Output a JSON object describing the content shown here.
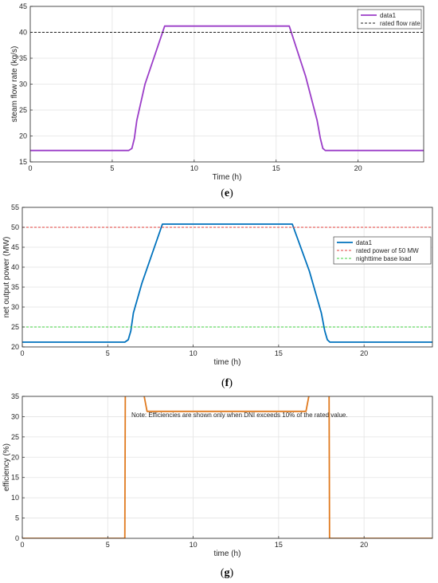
{
  "captions": [
    "(",
    "e",
    ")",
    "(",
    "f",
    ")",
    "(",
    "g",
    ")"
  ],
  "chart_data": [
    {
      "type": "line",
      "caption": "(e)",
      "xlabel": "Time (h)",
      "ylabel": "steam flow rate (kg/s)",
      "xlim": [
        0,
        24
      ],
      "ylim": [
        15,
        45
      ],
      "xticks": [
        0,
        5,
        10,
        15,
        20
      ],
      "yticks": [
        15,
        20,
        25,
        30,
        35,
        40,
        45
      ],
      "grid": true,
      "legend_position": "top-right",
      "series": [
        {
          "name": "data1",
          "color": "#9b3dc8",
          "style": "solid",
          "x": [
            0,
            6.0,
            6.2,
            6.35,
            6.5,
            7.0,
            8.2,
            15.8,
            16.8,
            17.5,
            17.7,
            17.85,
            18.0,
            24
          ],
          "y": [
            17.2,
            17.2,
            17.6,
            19.5,
            23,
            30,
            41.2,
            41.2,
            31.5,
            23,
            19.5,
            17.6,
            17.2,
            17.2
          ]
        },
        {
          "name": "rated flow rate",
          "color": "#222222",
          "style": "dashed",
          "x": [
            0,
            24
          ],
          "y": [
            40,
            40
          ]
        }
      ]
    },
    {
      "type": "line",
      "caption": "(f)",
      "xlabel": "time (h)",
      "ylabel": "net output power (MW)",
      "xlim": [
        0,
        24
      ],
      "ylim": [
        20,
        55
      ],
      "xticks": [
        0,
        5,
        10,
        15,
        20
      ],
      "yticks": [
        20,
        25,
        30,
        35,
        40,
        45,
        50,
        55
      ],
      "grid": true,
      "legend_position": "right",
      "series": [
        {
          "name": "data1",
          "color": "#0072bd",
          "style": "solid",
          "x": [
            0,
            6.0,
            6.2,
            6.35,
            6.5,
            7.0,
            8.2,
            15.8,
            16.8,
            17.5,
            17.7,
            17.85,
            18.0,
            24
          ],
          "y": [
            21.2,
            21.2,
            21.8,
            24,
            28.5,
            36,
            50.8,
            50.8,
            39,
            28.5,
            24,
            21.8,
            21.2,
            21.2
          ]
        },
        {
          "name": "rated power of 50 MW",
          "color": "#e0423c",
          "style": "dashed",
          "x": [
            0,
            24
          ],
          "y": [
            50,
            50
          ]
        },
        {
          "name": "nighttime base load",
          "color": "#3fd13f",
          "style": "dashed",
          "x": [
            0,
            24
          ],
          "y": [
            25,
            25
          ]
        }
      ]
    },
    {
      "type": "line",
      "caption": "(g)",
      "xlabel": "time (h)",
      "ylabel": "efficiency (%)",
      "xlim": [
        0,
        24
      ],
      "ylim": [
        0,
        35
      ],
      "xticks": [
        0,
        5,
        10,
        15,
        20
      ],
      "yticks": [
        0,
        5,
        10,
        15,
        20,
        25,
        30,
        35
      ],
      "grid": true,
      "annotation": "Note: Efficiencies are shown only when DNI exceeds 10% of the rated value.",
      "series": [
        {
          "name": "",
          "color": "#e07a1f",
          "style": "solid",
          "x": [
            0,
            6.0,
            6.03,
            7.0,
            7.3,
            16.6,
            16.9,
            17.95,
            17.98,
            24
          ],
          "y": [
            0,
            0,
            38,
            38,
            31.3,
            31.3,
            38,
            38,
            0,
            0
          ]
        }
      ]
    }
  ]
}
